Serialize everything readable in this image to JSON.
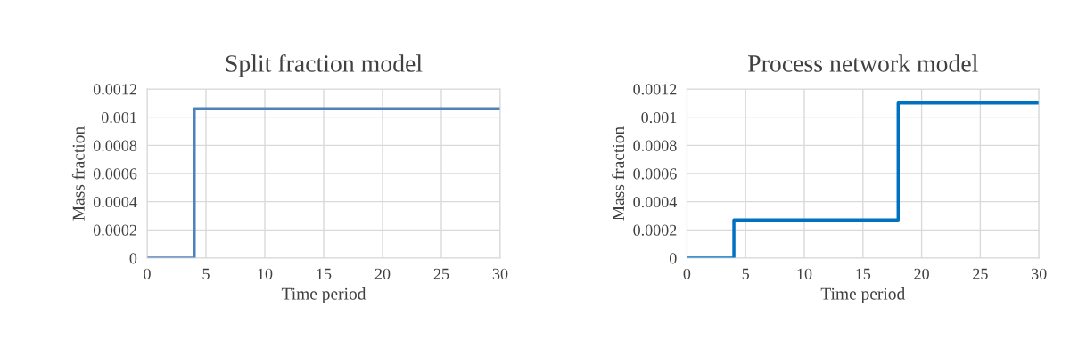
{
  "chart_data": [
    {
      "type": "step",
      "title": "Split fraction model",
      "xlabel": "Time period",
      "ylabel": "Mass fraction",
      "x": [
        0,
        4,
        30
      ],
      "series": [
        {
          "color": "#4f81bd",
          "values": [
            0,
            0.00106,
            0.00106
          ]
        }
      ],
      "xlim": [
        0,
        30
      ],
      "xticks": [
        0,
        5,
        10,
        15,
        20,
        25,
        30
      ],
      "ylim": [
        0,
        0.0012
      ],
      "yticks": [
        0,
        0.0002,
        0.0004,
        0.0006,
        0.0008,
        0.001,
        0.0012
      ],
      "grid": true
    },
    {
      "type": "step",
      "title": "Process network model",
      "xlabel": "Time period",
      "ylabel": "Mass fraction",
      "x": [
        0,
        4,
        18,
        30
      ],
      "series": [
        {
          "color": "#0070c0",
          "values": [
            0,
            0.00027,
            0.0011,
            0.0011
          ]
        }
      ],
      "xlim": [
        0,
        30
      ],
      "xticks": [
        0,
        5,
        10,
        15,
        20,
        25,
        30
      ],
      "ylim": [
        0,
        0.0012
      ],
      "yticks": [
        0,
        0.0002,
        0.0004,
        0.0006,
        0.0008,
        0.001,
        0.0012
      ],
      "grid": true
    }
  ]
}
